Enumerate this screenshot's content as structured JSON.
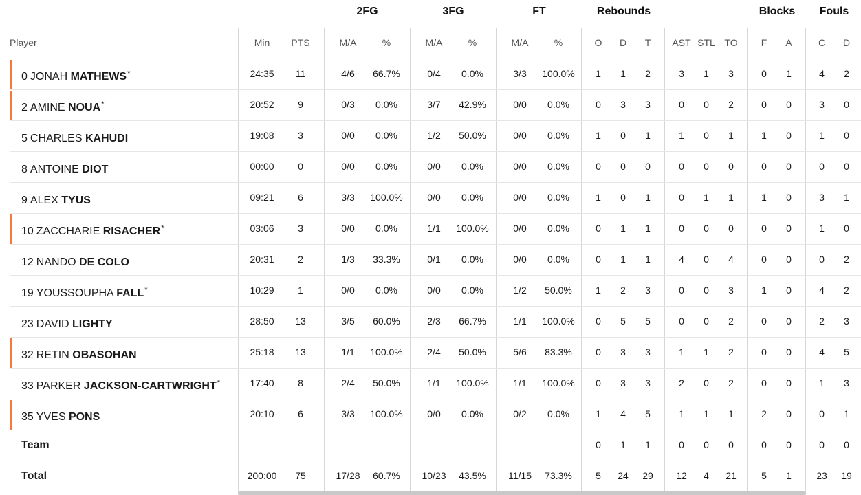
{
  "groups": {
    "fg2": "2FG",
    "fg3": "3FG",
    "ft": "FT",
    "rebounds": "Rebounds",
    "blocks": "Blocks",
    "fouls": "Fouls"
  },
  "columns": {
    "player": "Player",
    "min": "Min",
    "pts": "PTS",
    "fg2_ma": "M/A",
    "fg2_pct": "%",
    "fg3_ma": "M/A",
    "fg3_pct": "%",
    "ft_ma": "M/A",
    "ft_pct": "%",
    "reb_o": "O",
    "reb_d": "D",
    "reb_t": "T",
    "ast": "AST",
    "stl": "STL",
    "to": "TO",
    "blk_f": "F",
    "blk_a": "A",
    "foul_c": "C",
    "foul_d": "D"
  },
  "accent_color": "#f47a3b",
  "rows": [
    {
      "num": "0",
      "first": "JONAH",
      "last": "MATHEWS",
      "star": "*",
      "starter": true,
      "v": [
        "24:35",
        "11",
        "4/6",
        "66.7%",
        "0/4",
        "0.0%",
        "3/3",
        "100.0%",
        "1",
        "1",
        "2",
        "3",
        "1",
        "3",
        "0",
        "1",
        "4",
        "2"
      ]
    },
    {
      "num": "2",
      "first": "AMINE",
      "last": "NOUA",
      "star": "*",
      "starter": true,
      "v": [
        "20:52",
        "9",
        "0/3",
        "0.0%",
        "3/7",
        "42.9%",
        "0/0",
        "0.0%",
        "0",
        "3",
        "3",
        "0",
        "0",
        "2",
        "0",
        "0",
        "3",
        "0"
      ]
    },
    {
      "num": "5",
      "first": "CHARLES",
      "last": "KAHUDI",
      "star": "",
      "starter": false,
      "v": [
        "19:08",
        "3",
        "0/0",
        "0.0%",
        "1/2",
        "50.0%",
        "0/0",
        "0.0%",
        "1",
        "0",
        "1",
        "1",
        "0",
        "1",
        "1",
        "0",
        "1",
        "0"
      ]
    },
    {
      "num": "8",
      "first": "ANTOINE",
      "last": "DIOT",
      "star": "",
      "starter": false,
      "v": [
        "00:00",
        "0",
        "0/0",
        "0.0%",
        "0/0",
        "0.0%",
        "0/0",
        "0.0%",
        "0",
        "0",
        "0",
        "0",
        "0",
        "0",
        "0",
        "0",
        "0",
        "0"
      ]
    },
    {
      "num": "9",
      "first": "ALEX",
      "last": "TYUS",
      "star": "",
      "starter": false,
      "v": [
        "09:21",
        "6",
        "3/3",
        "100.0%",
        "0/0",
        "0.0%",
        "0/0",
        "0.0%",
        "1",
        "0",
        "1",
        "0",
        "1",
        "1",
        "1",
        "0",
        "3",
        "1"
      ]
    },
    {
      "num": "10",
      "first": "ZACCHARIE",
      "last": "RISACHER",
      "star": "*",
      "starter": true,
      "v": [
        "03:06",
        "3",
        "0/0",
        "0.0%",
        "1/1",
        "100.0%",
        "0/0",
        "0.0%",
        "0",
        "1",
        "1",
        "0",
        "0",
        "0",
        "0",
        "0",
        "1",
        "0"
      ]
    },
    {
      "num": "12",
      "first": "NANDO",
      "last": "DE COLO",
      "star": "",
      "starter": false,
      "v": [
        "20:31",
        "2",
        "1/3",
        "33.3%",
        "0/1",
        "0.0%",
        "0/0",
        "0.0%",
        "0",
        "1",
        "1",
        "4",
        "0",
        "4",
        "0",
        "0",
        "0",
        "2"
      ]
    },
    {
      "num": "19",
      "first": "YOUSSOUPHA",
      "last": "FALL",
      "star": "*",
      "starter": false,
      "v": [
        "10:29",
        "1",
        "0/0",
        "0.0%",
        "0/0",
        "0.0%",
        "1/2",
        "50.0%",
        "1",
        "2",
        "3",
        "0",
        "0",
        "3",
        "1",
        "0",
        "4",
        "2"
      ]
    },
    {
      "num": "23",
      "first": "DAVID",
      "last": "LIGHTY",
      "star": "",
      "starter": false,
      "v": [
        "28:50",
        "13",
        "3/5",
        "60.0%",
        "2/3",
        "66.7%",
        "1/1",
        "100.0%",
        "0",
        "5",
        "5",
        "0",
        "0",
        "2",
        "0",
        "0",
        "2",
        "3"
      ]
    },
    {
      "num": "32",
      "first": "RETIN",
      "last": "OBASOHAN",
      "star": "",
      "starter": true,
      "v": [
        "25:18",
        "13",
        "1/1",
        "100.0%",
        "2/4",
        "50.0%",
        "5/6",
        "83.3%",
        "0",
        "3",
        "3",
        "1",
        "1",
        "2",
        "0",
        "0",
        "4",
        "5"
      ]
    },
    {
      "num": "33",
      "first": "PARKER",
      "last": "JACKSON-CARTWRIGHT",
      "star": "*",
      "starter": false,
      "v": [
        "17:40",
        "8",
        "2/4",
        "50.0%",
        "1/1",
        "100.0%",
        "1/1",
        "100.0%",
        "0",
        "3",
        "3",
        "2",
        "0",
        "2",
        "0",
        "0",
        "1",
        "3"
      ]
    },
    {
      "num": "35",
      "first": "YVES",
      "last": "PONS",
      "star": "",
      "starter": true,
      "v": [
        "20:10",
        "6",
        "3/3",
        "100.0%",
        "0/0",
        "0.0%",
        "0/2",
        "0.0%",
        "1",
        "4",
        "5",
        "1",
        "1",
        "1",
        "2",
        "0",
        "0",
        "1"
      ]
    },
    {
      "label": "Team",
      "summary": true,
      "v": [
        "",
        "",
        "",
        "",
        "",
        "",
        "",
        "",
        "0",
        "1",
        "1",
        "0",
        "0",
        "0",
        "0",
        "0",
        "0",
        "0"
      ]
    },
    {
      "label": "Total",
      "summary": true,
      "v": [
        "200:00",
        "75",
        "17/28",
        "60.7%",
        "10/23",
        "43.5%",
        "11/15",
        "73.3%",
        "5",
        "24",
        "29",
        "12",
        "4",
        "21",
        "5",
        "1",
        "23",
        "19"
      ]
    }
  ]
}
